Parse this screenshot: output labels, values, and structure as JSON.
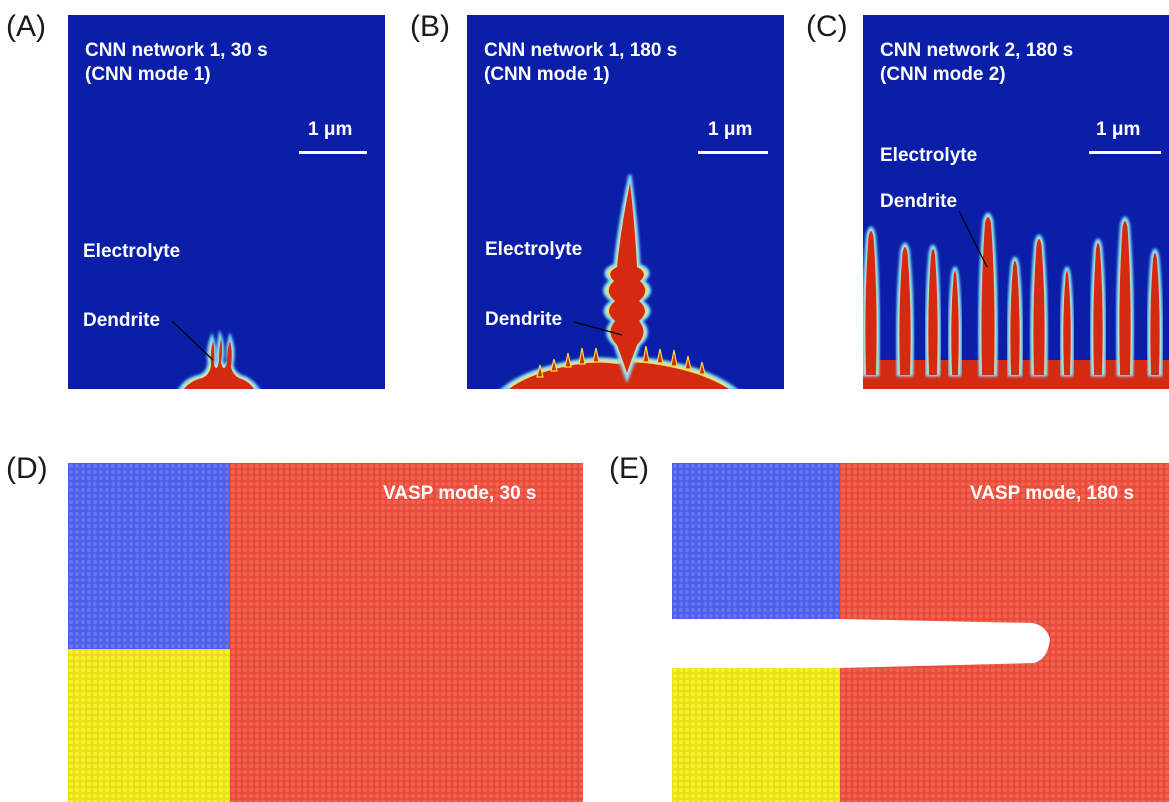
{
  "colors": {
    "electrolyte": "#0a1ea8",
    "dendrite": "#d42a12",
    "interface_glow": "#f5e040",
    "blue_atoms": "#4d5ee8",
    "yellow_atoms": "#f0ec1c",
    "red_atoms": "#ee5240"
  },
  "panels": {
    "A": {
      "letter": "(A)",
      "title_line1": "CNN network 1, 30 s",
      "title_line2": "(CNN mode 1)",
      "scale": "1 μm",
      "electrolyte": "Electrolyte",
      "dendrite": "Dendrite"
    },
    "B": {
      "letter": "(B)",
      "title_line1": "CNN network 1, 180 s",
      "title_line2": "(CNN mode 1)",
      "scale": "1 μm",
      "electrolyte": "Electrolyte",
      "dendrite": "Dendrite"
    },
    "C": {
      "letter": "(C)",
      "title_line1": "CNN network 2, 180 s",
      "title_line2": "(CNN mode 2)",
      "scale": "1 μm",
      "electrolyte": "Electrolyte",
      "dendrite": "Dendrite"
    },
    "D": {
      "letter": "(D)",
      "label": "VASP mode, 30 s"
    },
    "E": {
      "letter": "(E)",
      "label": "VASP mode, 180 s"
    }
  }
}
